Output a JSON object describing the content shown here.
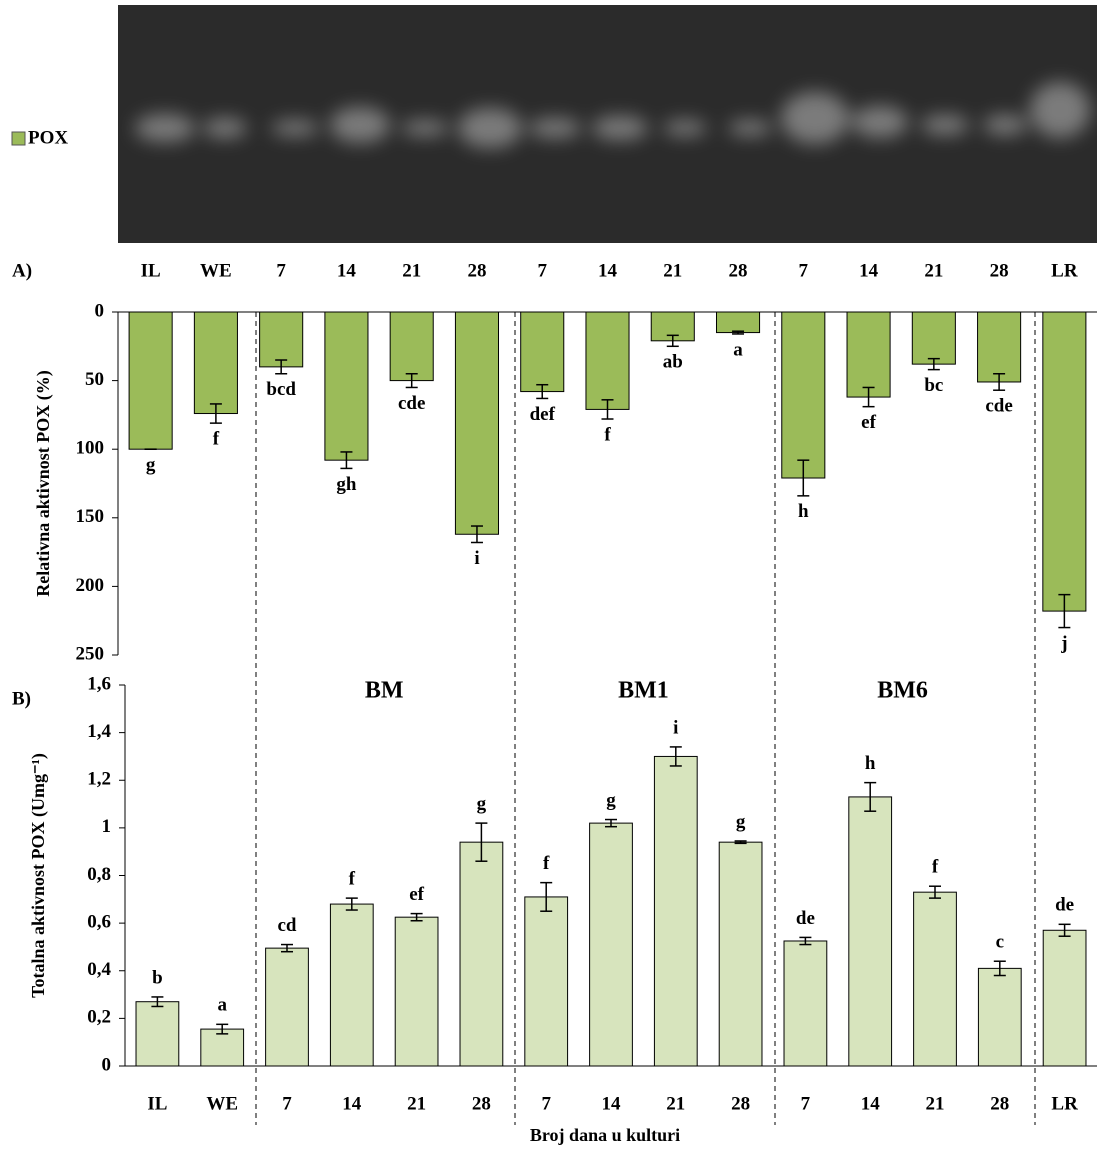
{
  "legend": {
    "label": "POX",
    "color": "#9bbb59"
  },
  "chart_data": [
    {
      "type": "bar",
      "panel_label": "A)",
      "y_label": "Relativna aktivnost POX (%)",
      "categories": [
        "IL",
        "WE",
        "7",
        "14",
        "21",
        "28",
        "7",
        "14",
        "21",
        "28",
        "7",
        "14",
        "21",
        "28",
        "LR"
      ],
      "values": [
        100,
        74,
        40,
        108,
        50,
        162,
        58,
        71,
        21,
        15,
        121,
        62,
        38,
        51,
        218
      ],
      "errors": [
        0,
        7,
        5,
        6,
        5,
        6,
        5,
        7,
        4,
        1,
        13,
        7,
        4,
        6,
        12
      ],
      "letters": [
        "g",
        "f",
        "bcd",
        "gh",
        "cde",
        "i",
        "def",
        "f",
        "ab",
        "a",
        "h",
        "ef",
        "bc",
        "cde",
        "j"
      ],
      "color": "#9bbb59",
      "y_inverted": true,
      "ylim": [
        0,
        250
      ],
      "yticks": [
        0,
        50,
        100,
        150,
        200,
        250
      ]
    },
    {
      "type": "bar",
      "panel_label": "B)",
      "y_label": "Totalna aktivnost POX (Umg⁻¹)",
      "x_label": "Broj dana u kulturi",
      "categories": [
        "IL",
        "WE",
        "7",
        "14",
        "21",
        "28",
        "7",
        "14",
        "21",
        "28",
        "7",
        "14",
        "21",
        "28",
        "LR"
      ],
      "groups": [
        "BM",
        "BM1",
        "BM6"
      ],
      "values": [
        0.27,
        0.155,
        0.495,
        0.68,
        0.625,
        0.94,
        0.71,
        1.02,
        1.3,
        0.94,
        0.525,
        1.13,
        0.73,
        0.41,
        0.57
      ],
      "errors": [
        0.02,
        0.02,
        0.015,
        0.025,
        0.015,
        0.08,
        0.06,
        0.015,
        0.04,
        0.005,
        0.015,
        0.06,
        0.025,
        0.03,
        0.025
      ],
      "letters": [
        "b",
        "a",
        "cd",
        "f",
        "ef",
        "g",
        "f",
        "g",
        "i",
        "g",
        "de",
        "h",
        "f",
        "c",
        "de"
      ],
      "color": "#d7e4bd",
      "ylim": [
        0,
        1.6
      ],
      "yticks": [
        0,
        {
          "value": 0.2,
          "label": "0,2"
        },
        {
          "value": 0.4,
          "label": "0,4"
        },
        {
          "value": 0.6,
          "label": "0,6"
        },
        {
          "value": 0.8,
          "label": "0,8"
        },
        1,
        {
          "value": 1.2,
          "label": "1,2"
        },
        {
          "value": 1.4,
          "label": "1,4"
        },
        {
          "value": 1.6,
          "label": "1,6"
        }
      ]
    }
  ]
}
